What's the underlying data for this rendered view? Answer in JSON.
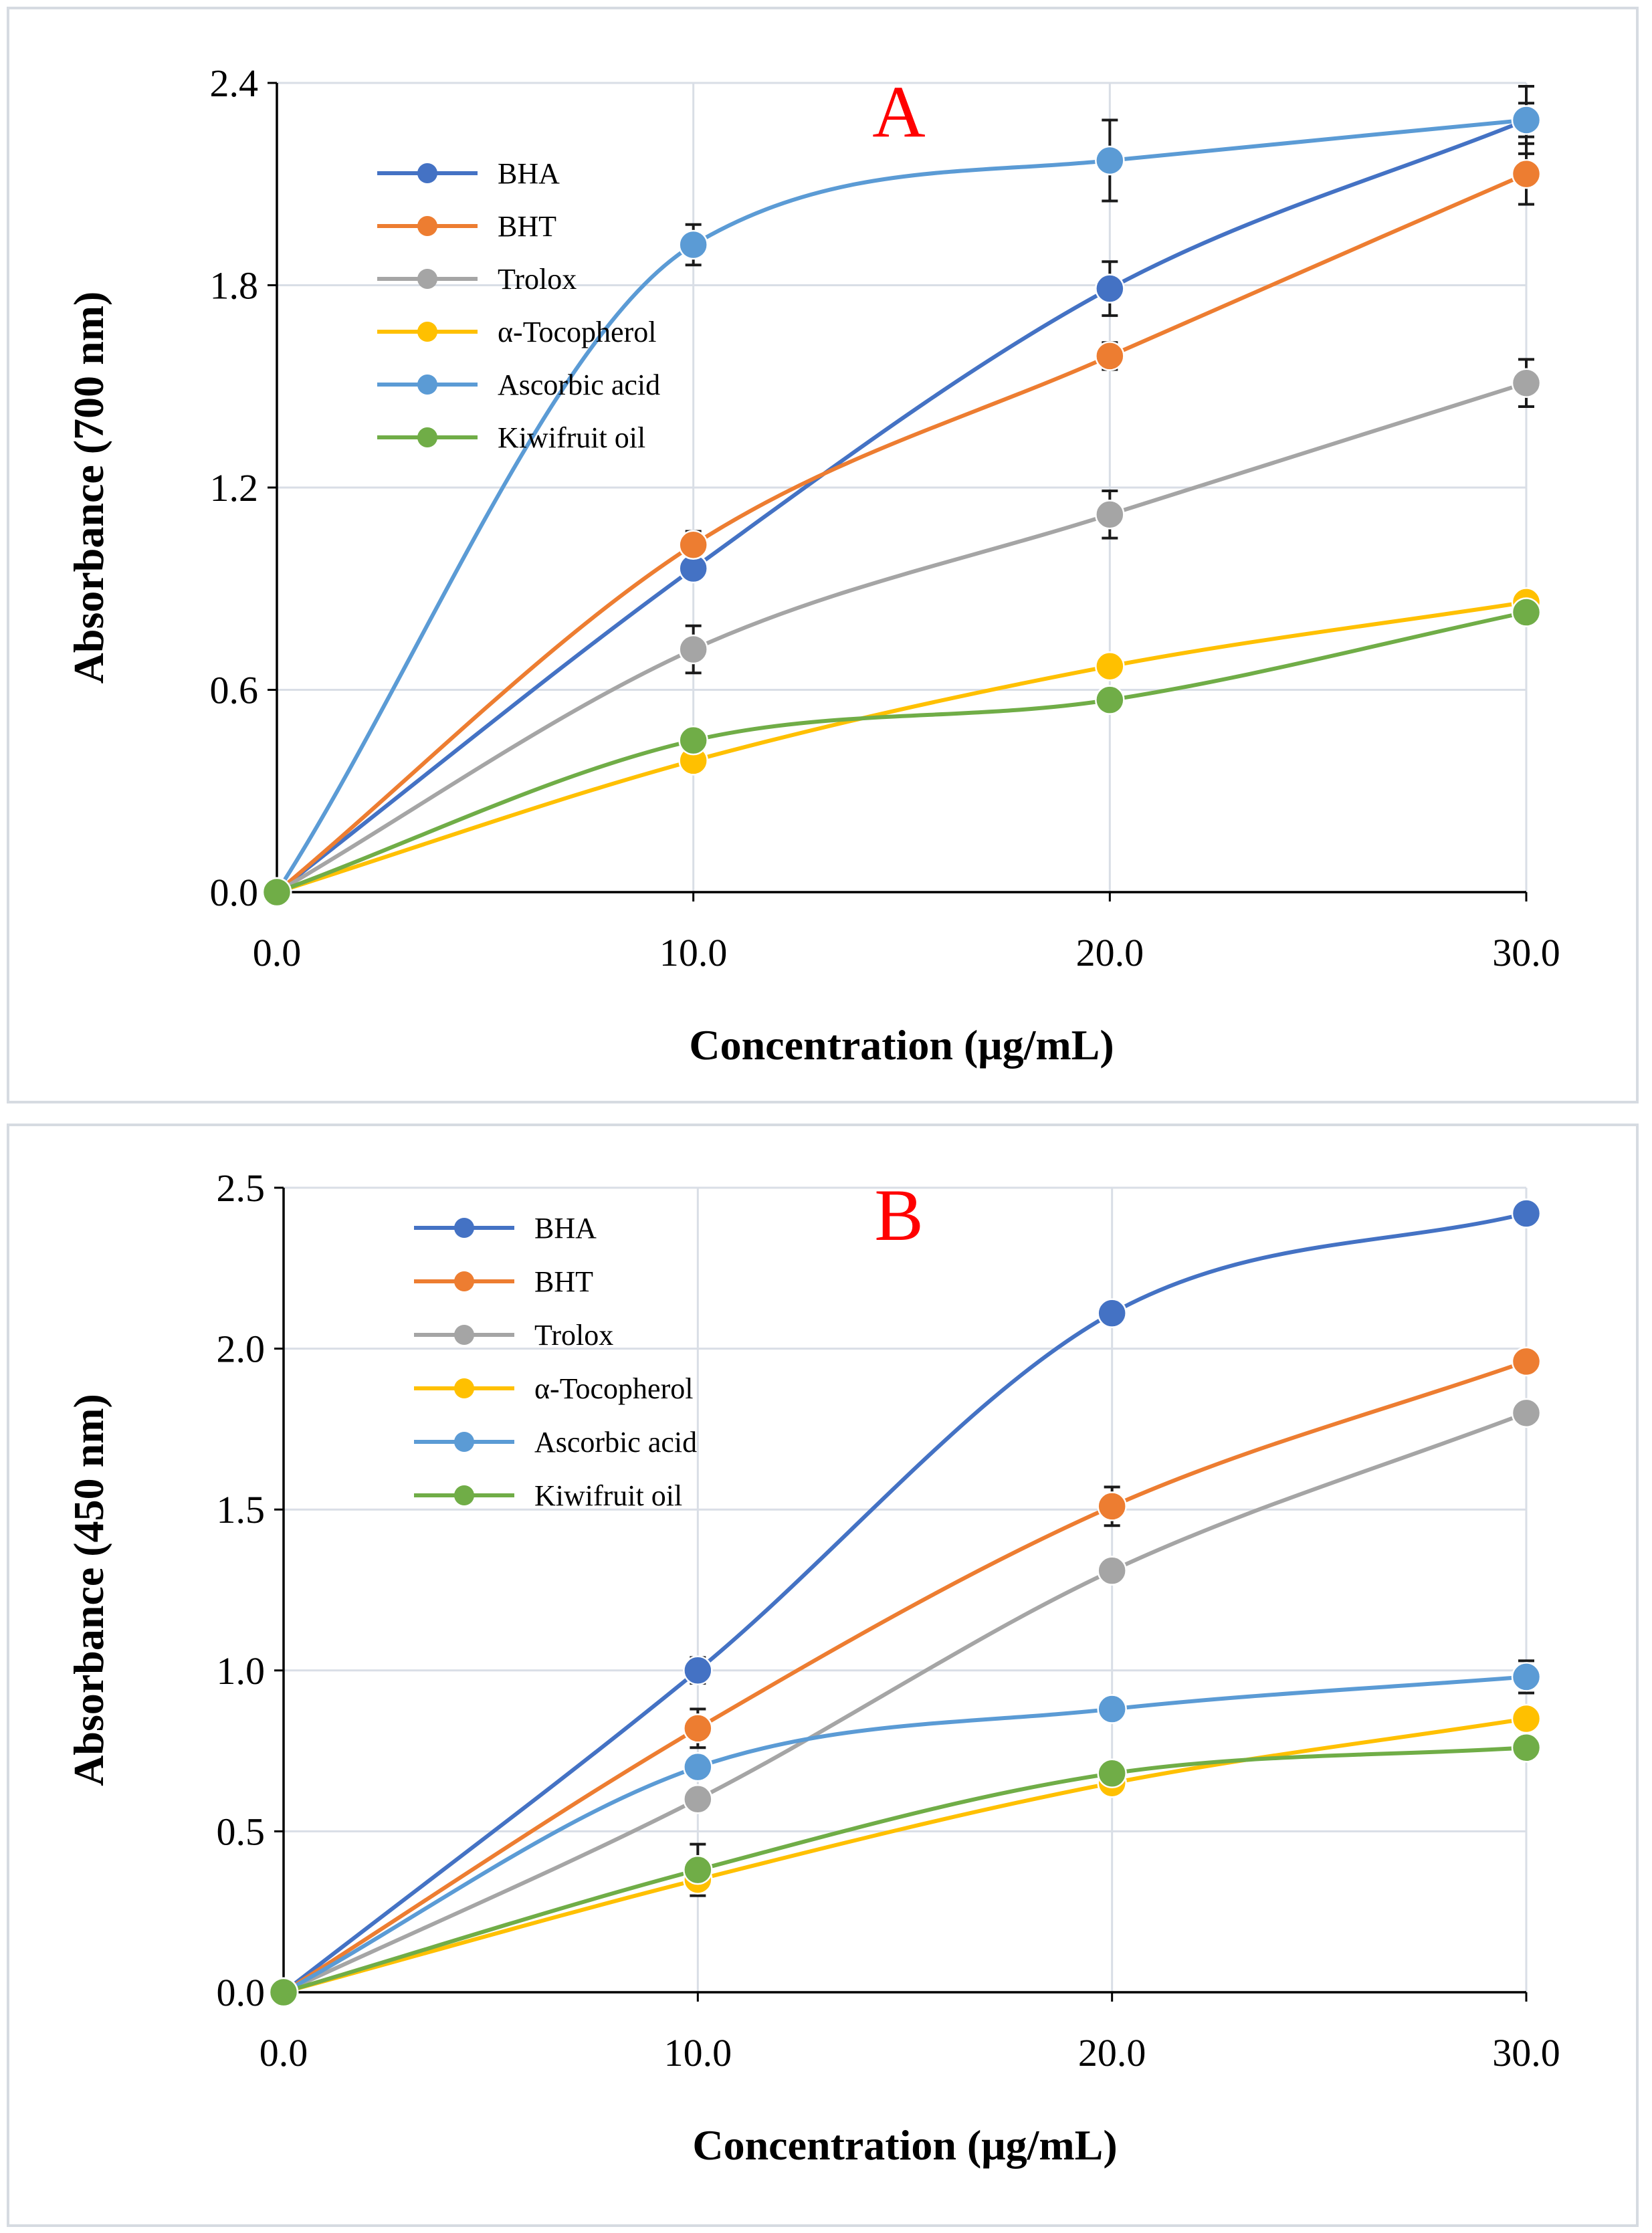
{
  "colors": {
    "BHA": "#4472c4",
    "BHT": "#ed7d31",
    "Trolox": "#a5a5a5",
    "alpha_tocopherol": "#ffc000",
    "Ascorbic acid": "#5b9bd5",
    "Kiwifruit oil": "#70ad47",
    "panel_label": "#ff0000",
    "grid": "#d9dee6",
    "frame": "#d6dbe1"
  },
  "chart_data": [
    {
      "type": "line",
      "panel_label": "A",
      "xlabel": "Concentration (μg/mL)",
      "ylabel": "Absorbance (700 nm)",
      "x": [
        0,
        10,
        20,
        30
      ],
      "x_tick_labels": [
        "0.0",
        "10.0",
        "20.0",
        "30.0"
      ],
      "y_tick_values": [
        0,
        0.6,
        1.2,
        1.8,
        2.4
      ],
      "y_tick_labels": [
        "0.0",
        "0.6",
        "1.2",
        "1.8",
        "2.4"
      ],
      "xlim": [
        0,
        30
      ],
      "ylim": [
        0,
        2.4
      ],
      "grid": true,
      "legend_position": "top-left",
      "series": [
        {
          "name": "BHA",
          "color_key": "BHA",
          "values": [
            0,
            0.96,
            1.79,
            2.29
          ],
          "errors": [
            0,
            0.03,
            0.08,
            0.05
          ]
        },
        {
          "name": "BHT",
          "color_key": "BHT",
          "values": [
            0,
            1.03,
            1.59,
            2.13
          ],
          "errors": [
            0,
            0.04,
            0.04,
            0.09
          ]
        },
        {
          "name": "Trolox",
          "color_key": "Trolox",
          "values": [
            0,
            0.72,
            1.12,
            1.51
          ],
          "errors": [
            0,
            0.07,
            0.07,
            0.07
          ]
        },
        {
          "name": "α-Tocopherol",
          "color_key": "alpha_tocopherol",
          "values": [
            0,
            0.39,
            0.67,
            0.86
          ],
          "errors": [
            0,
            0.02,
            0.02,
            0.02
          ]
        },
        {
          "name": "Ascorbic acid",
          "color_key": "Ascorbic acid",
          "values": [
            0,
            1.92,
            2.17,
            2.29
          ],
          "errors": [
            0,
            0.06,
            0.12,
            0.1
          ]
        },
        {
          "name": "Kiwifruit oil",
          "color_key": "Kiwifruit oil",
          "values": [
            0,
            0.45,
            0.57,
            0.83
          ],
          "errors": [
            0,
            0.02,
            0.02,
            0.02
          ]
        }
      ]
    },
    {
      "type": "line",
      "panel_label": "B",
      "xlabel": "Concentration (μg/mL)",
      "ylabel": "Absorbance (450 nm)",
      "x": [
        0,
        10,
        20,
        30
      ],
      "x_tick_labels": [
        "0.0",
        "10.0",
        "20.0",
        "30.0"
      ],
      "y_tick_values": [
        0,
        0.5,
        1.0,
        1.5,
        2.0,
        2.5
      ],
      "y_tick_labels": [
        "0.0",
        "0.5",
        "1.0",
        "1.5",
        "2.0",
        "2.5"
      ],
      "xlim": [
        0,
        30
      ],
      "ylim": [
        0,
        2.5
      ],
      "grid": true,
      "legend_position": "top-left",
      "series": [
        {
          "name": "BHA",
          "color_key": "BHA",
          "values": [
            0,
            1.0,
            2.11,
            2.42
          ],
          "errors": [
            0,
            0.04,
            0.03,
            0.02
          ]
        },
        {
          "name": "BHT",
          "color_key": "BHT",
          "values": [
            0,
            0.82,
            1.51,
            1.96
          ],
          "errors": [
            0,
            0.06,
            0.06,
            0.03
          ]
        },
        {
          "name": "Trolox",
          "color_key": "Trolox",
          "values": [
            0,
            0.6,
            1.31,
            1.8
          ],
          "errors": [
            0,
            0.03,
            0.03,
            0.03
          ]
        },
        {
          "name": "α-Tocopherol",
          "color_key": "alpha_tocopherol",
          "values": [
            0,
            0.35,
            0.65,
            0.85
          ],
          "errors": [
            0,
            0.03,
            0.02,
            0.03
          ]
        },
        {
          "name": "Ascorbic acid",
          "color_key": "Ascorbic acid",
          "values": [
            0,
            0.7,
            0.88,
            0.98
          ],
          "errors": [
            0,
            0.03,
            0.02,
            0.05
          ]
        },
        {
          "name": "Kiwifruit oil",
          "color_key": "Kiwifruit oil",
          "values": [
            0,
            0.38,
            0.68,
            0.76
          ],
          "errors": [
            0,
            0.08,
            0.03,
            0.02
          ]
        }
      ]
    }
  ]
}
